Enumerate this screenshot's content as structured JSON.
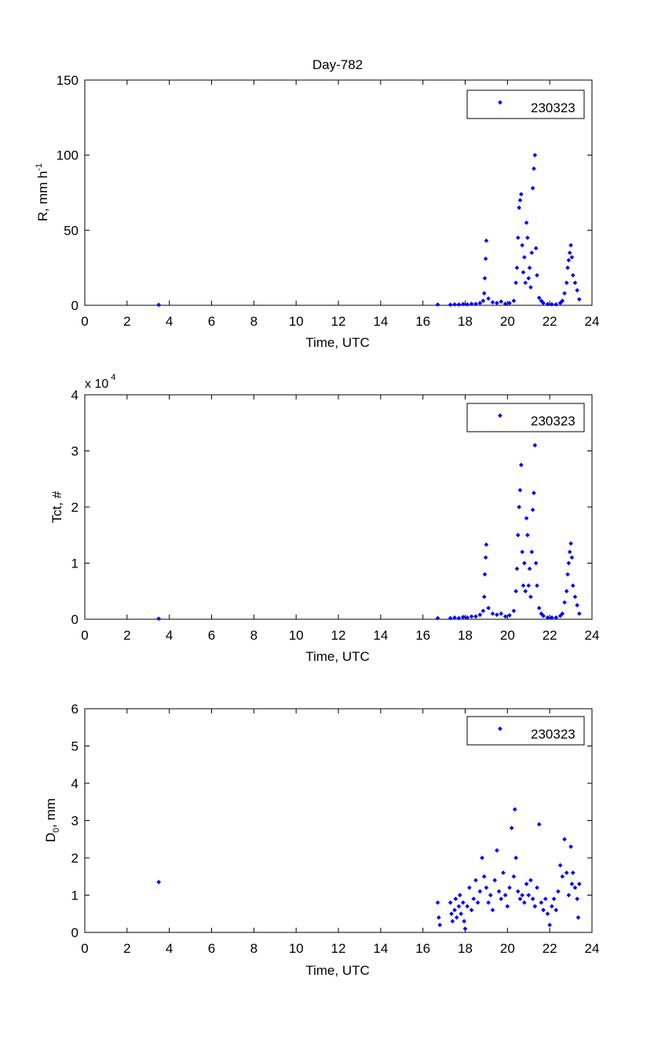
{
  "figure": {
    "title": "Day-782"
  },
  "colors": {
    "marker": "#0000ff",
    "axis": "#000000",
    "background": "#ffffff"
  },
  "chart_data": [
    {
      "type": "scatter",
      "xlabel": "Time, UTC",
      "ylabel_main": "R, mm h",
      "ylabel_sup": "-1",
      "xlim": [
        0,
        24
      ],
      "ylim": [
        0,
        150
      ],
      "xticks": [
        0,
        2,
        4,
        6,
        8,
        10,
        12,
        14,
        16,
        18,
        20,
        22,
        24
      ],
      "yticks": [
        0,
        50,
        100,
        150
      ],
      "legend": "230323",
      "legend_position": "top-right",
      "series": [
        {
          "name": "230323",
          "points": [
            [
              3.5,
              0.3
            ],
            [
              16.7,
              0.5
            ],
            [
              17.3,
              0.4
            ],
            [
              17.5,
              0.6
            ],
            [
              17.7,
              0.5
            ],
            [
              17.9,
              0.8
            ],
            [
              18.1,
              0.6
            ],
            [
              18.3,
              1.0
            ],
            [
              18.5,
              0.9
            ],
            [
              18.7,
              1.5
            ],
            [
              18.85,
              3.0
            ],
            [
              18.9,
              8.0
            ],
            [
              18.93,
              18.0
            ],
            [
              18.97,
              31.0
            ],
            [
              19.0,
              43.0
            ],
            [
              19.1,
              4.5
            ],
            [
              19.3,
              2.0
            ],
            [
              19.5,
              1.5
            ],
            [
              19.7,
              2.5
            ],
            [
              19.9,
              1.0
            ],
            [
              20.1,
              1.5
            ],
            [
              20.3,
              3.0
            ],
            [
              20.4,
              15.0
            ],
            [
              20.45,
              25.0
            ],
            [
              20.5,
              45.0
            ],
            [
              20.55,
              65.0
            ],
            [
              20.6,
              70.0
            ],
            [
              20.65,
              74.0
            ],
            [
              20.7,
              40.0
            ],
            [
              20.75,
              22.0
            ],
            [
              20.8,
              32.0
            ],
            [
              20.85,
              15.0
            ],
            [
              20.9,
              55.0
            ],
            [
              20.95,
              45.0
            ],
            [
              21.0,
              18.0
            ],
            [
              21.05,
              25.0
            ],
            [
              21.1,
              12.0
            ],
            [
              21.15,
              35.0
            ],
            [
              21.2,
              78.0
            ],
            [
              21.25,
              91.0
            ],
            [
              21.3,
              100.0
            ],
            [
              21.35,
              38.0
            ],
            [
              21.4,
              20.0
            ],
            [
              21.5,
              5.0
            ],
            [
              21.6,
              3.0
            ],
            [
              21.7,
              1.5
            ],
            [
              21.9,
              0.8
            ],
            [
              22.1,
              0.7
            ],
            [
              22.3,
              0.6
            ],
            [
              22.5,
              1.5
            ],
            [
              22.6,
              3.0
            ],
            [
              22.7,
              8.0
            ],
            [
              22.8,
              15.0
            ],
            [
              22.85,
              25.0
            ],
            [
              22.9,
              30.0
            ],
            [
              22.95,
              35.0
            ],
            [
              23.0,
              40.0
            ],
            [
              23.05,
              32.0
            ],
            [
              23.1,
              20.0
            ],
            [
              23.2,
              15.0
            ],
            [
              23.3,
              10.0
            ],
            [
              23.4,
              4.0
            ]
          ]
        }
      ]
    },
    {
      "type": "scatter",
      "xlabel": "Time, UTC",
      "ylabel": "Tct, #",
      "scale_prefix": "x 10",
      "scale_exponent": "4",
      "xlim": [
        0,
        24
      ],
      "ylim": [
        0,
        4
      ],
      "xticks": [
        0,
        2,
        4,
        6,
        8,
        10,
        12,
        14,
        16,
        18,
        20,
        22,
        24
      ],
      "yticks": [
        0,
        1,
        2,
        3,
        4
      ],
      "legend": "230323",
      "legend_position": "top-right",
      "series": [
        {
          "name": "230323",
          "points": [
            [
              3.5,
              0.01
            ],
            [
              16.7,
              0.02
            ],
            [
              17.3,
              0.02
            ],
            [
              17.5,
              0.03
            ],
            [
              17.7,
              0.02
            ],
            [
              17.9,
              0.04
            ],
            [
              18.1,
              0.03
            ],
            [
              18.3,
              0.05
            ],
            [
              18.5,
              0.05
            ],
            [
              18.7,
              0.08
            ],
            [
              18.85,
              0.15
            ],
            [
              18.9,
              0.4
            ],
            [
              18.93,
              0.8
            ],
            [
              18.97,
              1.1
            ],
            [
              19.0,
              1.33
            ],
            [
              19.1,
              0.2
            ],
            [
              19.3,
              0.1
            ],
            [
              19.5,
              0.08
            ],
            [
              19.7,
              0.1
            ],
            [
              19.9,
              0.05
            ],
            [
              20.1,
              0.07
            ],
            [
              20.3,
              0.15
            ],
            [
              20.4,
              0.5
            ],
            [
              20.45,
              0.9
            ],
            [
              20.5,
              1.5
            ],
            [
              20.55,
              2.0
            ],
            [
              20.6,
              2.3
            ],
            [
              20.65,
              2.75
            ],
            [
              20.7,
              1.2
            ],
            [
              20.75,
              0.6
            ],
            [
              20.8,
              1.0
            ],
            [
              20.85,
              0.5
            ],
            [
              20.9,
              1.8
            ],
            [
              20.95,
              1.5
            ],
            [
              21.0,
              0.6
            ],
            [
              21.05,
              0.9
            ],
            [
              21.1,
              0.4
            ],
            [
              21.15,
              1.2
            ],
            [
              21.2,
              1.95
            ],
            [
              21.25,
              2.25
            ],
            [
              21.3,
              3.1
            ],
            [
              21.35,
              1.0
            ],
            [
              21.4,
              0.6
            ],
            [
              21.5,
              0.2
            ],
            [
              21.6,
              0.1
            ],
            [
              21.7,
              0.06
            ],
            [
              21.9,
              0.03
            ],
            [
              22.1,
              0.03
            ],
            [
              22.3,
              0.03
            ],
            [
              22.5,
              0.06
            ],
            [
              22.6,
              0.1
            ],
            [
              22.7,
              0.3
            ],
            [
              22.8,
              0.5
            ],
            [
              22.85,
              0.8
            ],
            [
              22.9,
              1.0
            ],
            [
              22.95,
              1.2
            ],
            [
              23.0,
              1.35
            ],
            [
              23.05,
              1.1
            ],
            [
              23.1,
              0.6
            ],
            [
              23.2,
              0.4
            ],
            [
              23.3,
              0.25
            ],
            [
              23.4,
              0.1
            ]
          ]
        }
      ]
    },
    {
      "type": "scatter",
      "xlabel": "Time, UTC",
      "ylabel_main": "D",
      "ylabel_sub": "0",
      "ylabel_tail": ", mm",
      "xlim": [
        0,
        24
      ],
      "ylim": [
        0,
        6
      ],
      "xticks": [
        0,
        2,
        4,
        6,
        8,
        10,
        12,
        14,
        16,
        18,
        20,
        22,
        24
      ],
      "yticks": [
        0,
        1,
        2,
        3,
        4,
        5,
        6
      ],
      "legend": "230323",
      "legend_position": "top-right",
      "series": [
        {
          "name": "230323",
          "points": [
            [
              3.5,
              1.35
            ],
            [
              16.7,
              0.8
            ],
            [
              16.75,
              0.4
            ],
            [
              16.8,
              0.2
            ],
            [
              17.3,
              0.8
            ],
            [
              17.35,
              0.5
            ],
            [
              17.4,
              0.3
            ],
            [
              17.5,
              0.6
            ],
            [
              17.55,
              0.9
            ],
            [
              17.6,
              0.4
            ],
            [
              17.7,
              0.7
            ],
            [
              17.75,
              1.0
            ],
            [
              17.8,
              0.5
            ],
            [
              17.9,
              0.8
            ],
            [
              17.95,
              0.3
            ],
            [
              18.0,
              0.1
            ],
            [
              18.1,
              0.7
            ],
            [
              18.2,
              1.2
            ],
            [
              18.3,
              0.6
            ],
            [
              18.4,
              0.9
            ],
            [
              18.5,
              1.4
            ],
            [
              18.6,
              0.8
            ],
            [
              18.7,
              1.1
            ],
            [
              18.8,
              2.0
            ],
            [
              18.9,
              1.5
            ],
            [
              19.0,
              1.2
            ],
            [
              19.1,
              0.8
            ],
            [
              19.2,
              1.0
            ],
            [
              19.3,
              0.6
            ],
            [
              19.4,
              1.4
            ],
            [
              19.5,
              2.2
            ],
            [
              19.6,
              1.1
            ],
            [
              19.7,
              0.9
            ],
            [
              19.8,
              1.6
            ],
            [
              19.9,
              1.0
            ],
            [
              20.0,
              0.7
            ],
            [
              20.1,
              1.2
            ],
            [
              20.2,
              2.8
            ],
            [
              20.3,
              1.5
            ],
            [
              20.35,
              3.3
            ],
            [
              20.4,
              2.0
            ],
            [
              20.5,
              1.1
            ],
            [
              20.6,
              0.9
            ],
            [
              20.7,
              1.0
            ],
            [
              20.8,
              0.8
            ],
            [
              20.9,
              1.3
            ],
            [
              21.0,
              1.0
            ],
            [
              21.1,
              1.4
            ],
            [
              21.2,
              0.9
            ],
            [
              21.3,
              0.7
            ],
            [
              21.4,
              1.2
            ],
            [
              21.5,
              2.9
            ],
            [
              21.6,
              0.8
            ],
            [
              21.7,
              0.6
            ],
            [
              21.8,
              0.9
            ],
            [
              21.9,
              0.5
            ],
            [
              22.0,
              0.2
            ],
            [
              22.1,
              0.7
            ],
            [
              22.2,
              0.9
            ],
            [
              22.3,
              0.6
            ],
            [
              22.4,
              1.1
            ],
            [
              22.5,
              1.8
            ],
            [
              22.6,
              1.5
            ],
            [
              22.7,
              2.5
            ],
            [
              22.8,
              1.6
            ],
            [
              22.9,
              1.0
            ],
            [
              23.0,
              2.3
            ],
            [
              23.05,
              1.3
            ],
            [
              23.1,
              1.6
            ],
            [
              23.2,
              1.2
            ],
            [
              23.3,
              0.9
            ],
            [
              23.35,
              0.4
            ],
            [
              23.4,
              1.3
            ]
          ]
        }
      ]
    }
  ]
}
